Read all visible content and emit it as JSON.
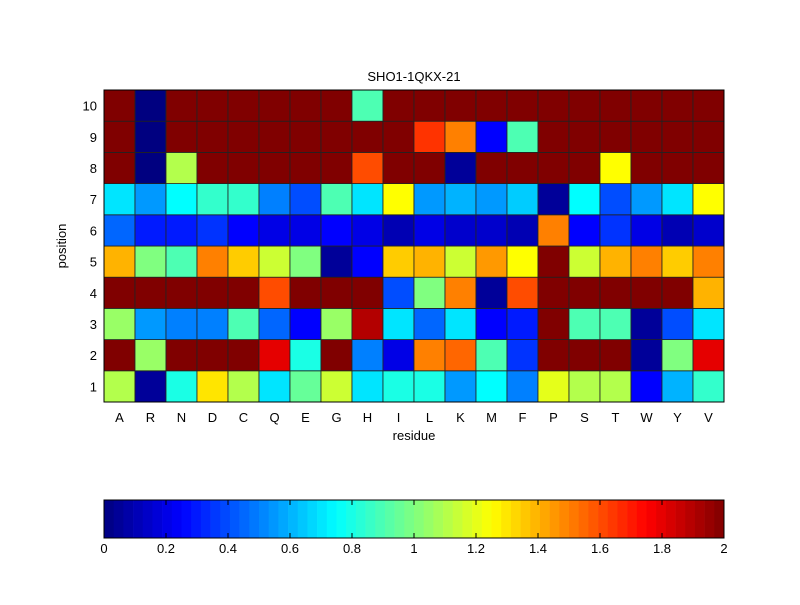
{
  "chart_data": {
    "type": "heatmap",
    "title": "SHO1-1QKX-21",
    "xlabel": "residue",
    "ylabel": "position",
    "x_categories": [
      "A",
      "R",
      "N",
      "D",
      "C",
      "Q",
      "E",
      "G",
      "H",
      "I",
      "L",
      "K",
      "M",
      "F",
      "P",
      "S",
      "T",
      "W",
      "Y",
      "V"
    ],
    "y_categories": [
      "1",
      "2",
      "3",
      "4",
      "5",
      "6",
      "7",
      "8",
      "9",
      "10"
    ],
    "colormap": "jet",
    "clim": [
      0,
      2
    ],
    "colorbar": {
      "placement": "bottom",
      "ticks": [
        "0",
        "0.2",
        "0.4",
        "0.6",
        "0.8",
        "1",
        "1.2",
        "1.4",
        "1.6",
        "1.8",
        "2"
      ]
    },
    "values_by_position": {
      "10": [
        2,
        0,
        2,
        2,
        2,
        2,
        2,
        2,
        0.9,
        2,
        2,
        2,
        2,
        2,
        2,
        2,
        2,
        2,
        2,
        2
      ],
      "9": [
        2,
        0,
        2,
        2,
        2,
        2,
        2,
        2,
        2,
        2,
        1.65,
        1.5,
        0.25,
        0.9,
        2,
        2,
        2,
        2,
        2,
        2
      ],
      "8": [
        2,
        0,
        1.1,
        2,
        2,
        2,
        2,
        2,
        1.6,
        2,
        2,
        0.05,
        2,
        2,
        2,
        2,
        1.25,
        2,
        2,
        2
      ],
      "7": [
        0.7,
        0.55,
        0.75,
        0.85,
        0.85,
        0.5,
        0.4,
        0.9,
        0.7,
        1.25,
        0.55,
        0.6,
        0.55,
        0.65,
        0.05,
        0.75,
        0.4,
        0.55,
        0.7,
        1.25
      ],
      "6": [
        0.45,
        0.3,
        0.3,
        0.35,
        0.25,
        0.2,
        0.2,
        0.25,
        0.2,
        0.1,
        0.2,
        0.15,
        0.15,
        0.1,
        1.5,
        0.25,
        0.35,
        0.2,
        0.1,
        0.15
      ],
      "5": [
        1.4,
        1.0,
        0.9,
        1.5,
        1.35,
        1.15,
        1.0,
        0.05,
        0.25,
        1.35,
        1.4,
        1.15,
        1.45,
        1.25,
        2,
        1.15,
        1.4,
        1.5,
        1.35,
        1.5
      ],
      "4": [
        2,
        2,
        2,
        2,
        2,
        1.6,
        2,
        2,
        2,
        0.4,
        1.0,
        1.5,
        0.05,
        1.6,
        2,
        2,
        2,
        2,
        2,
        1.4
      ],
      "3": [
        1.05,
        0.55,
        0.5,
        0.5,
        0.9,
        0.45,
        0.25,
        1.05,
        1.9,
        0.7,
        0.45,
        0.7,
        0.25,
        0.3,
        2,
        0.9,
        0.9,
        0.05,
        0.4,
        0.7
      ],
      "2": [
        2,
        1.05,
        2,
        2,
        2,
        1.8,
        0.8,
        2,
        0.5,
        0.2,
        1.5,
        1.55,
        0.9,
        0.35,
        2,
        2,
        2,
        0.05,
        1.0,
        1.8
      ],
      "1": [
        1.1,
        0.05,
        0.8,
        1.3,
        1.1,
        0.7,
        0.95,
        1.15,
        0.7,
        0.8,
        0.8,
        0.55,
        0.75,
        0.5,
        1.2,
        1.1,
        1.1,
        0.25,
        0.6,
        0.85
      ]
    }
  }
}
